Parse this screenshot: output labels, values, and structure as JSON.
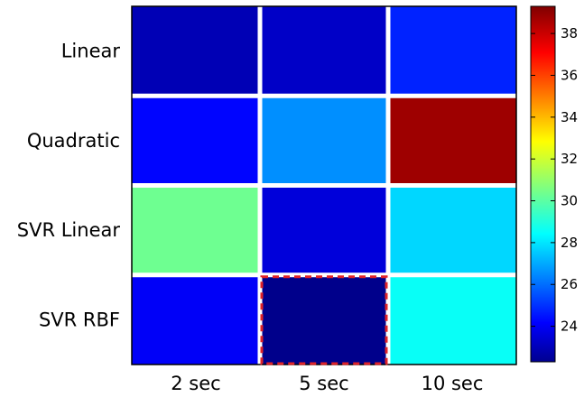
{
  "chart_data": {
    "type": "heatmap",
    "title": "",
    "xlabel": "",
    "ylabel": "",
    "rows": [
      "Linear",
      "Quadratic",
      "SVR Linear",
      "SVR RBF"
    ],
    "columns": [
      "2 sec",
      "5 sec",
      "10 sec"
    ],
    "values": [
      [
        23.2,
        23.5,
        25.0
      ],
      [
        24.5,
        26.8,
        38.8
      ],
      [
        30.5,
        23.8,
        28.0
      ],
      [
        24.3,
        22.5,
        28.8
      ]
    ],
    "colorbar": {
      "range": [
        22.3,
        39.3
      ],
      "ticks": [
        24,
        26,
        28,
        30,
        32,
        34,
        36,
        38
      ],
      "colormap": "jet"
    },
    "highlight": {
      "row": 3,
      "col": 1,
      "color": "#e0232a",
      "style": "dashed"
    }
  }
}
